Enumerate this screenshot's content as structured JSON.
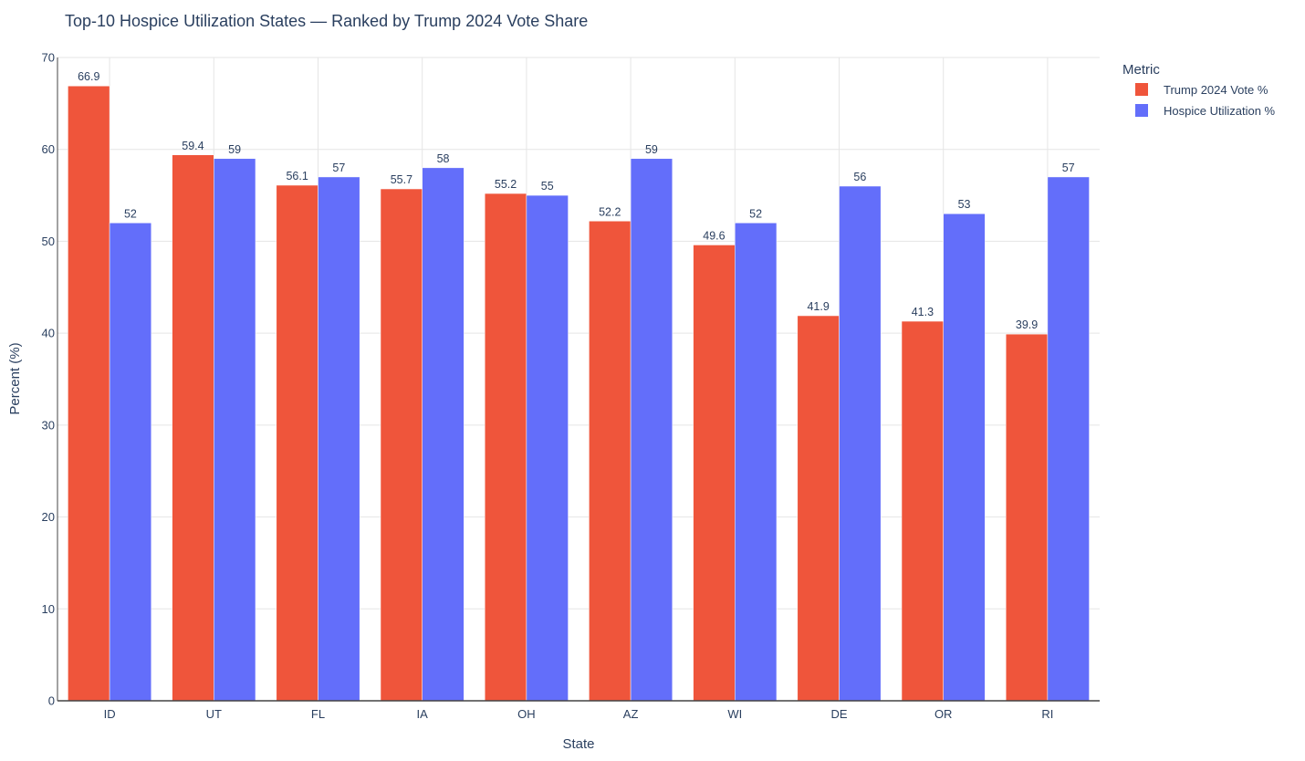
{
  "chart_data": {
    "type": "bar",
    "title": "Top-10 Hospice Utilization States — Ranked by Trump 2024 Vote Share",
    "xlabel": "State",
    "ylabel": "Percent (%)",
    "ylim": [
      0,
      70
    ],
    "yticks": [
      0,
      10,
      20,
      30,
      40,
      50,
      60,
      70
    ],
    "categories": [
      "ID",
      "UT",
      "FL",
      "IA",
      "OH",
      "AZ",
      "WI",
      "DE",
      "OR",
      "RI"
    ],
    "series": [
      {
        "name": "Trump 2024 Vote %",
        "color": "#ef553b",
        "values": [
          66.9,
          59.4,
          56.1,
          55.7,
          55.2,
          52.2,
          49.6,
          41.9,
          41.3,
          39.9
        ]
      },
      {
        "name": "Hospice Utilization %",
        "color": "#636efa",
        "values": [
          52,
          59,
          57,
          58,
          55,
          59,
          52,
          56,
          53,
          57
        ]
      }
    ],
    "legend": {
      "title": "Metric",
      "position": "top-right"
    },
    "grid": true
  }
}
